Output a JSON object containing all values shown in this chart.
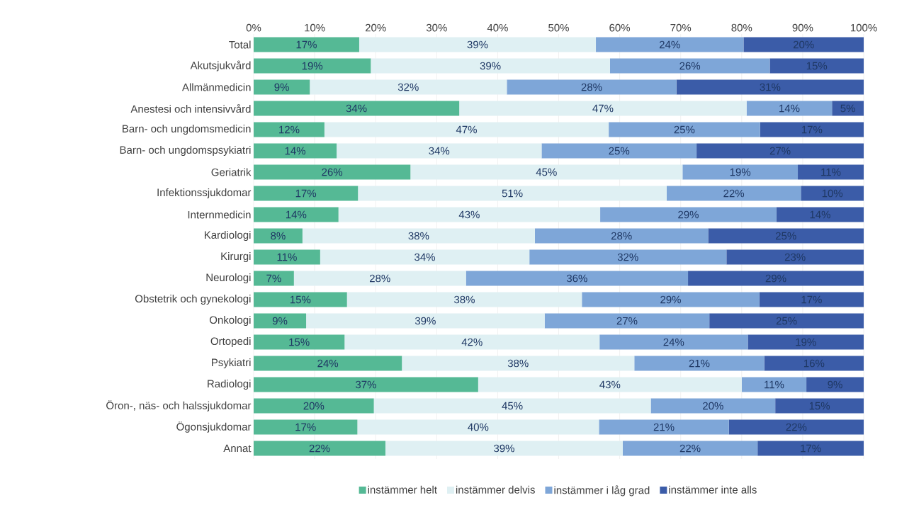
{
  "chart_data": {
    "type": "bar",
    "orientation": "horizontal",
    "stacked": true,
    "grid": "x",
    "legend": "bottom",
    "categories": [
      "Total",
      "Akutsjukvård",
      "Allmänmedicin",
      "Anestesi och intensivvård",
      "Barn- och ungdomsmedicin",
      "Barn- och ungdomspsykiatri",
      "Geriatrik",
      "Infektionssjukdomar",
      "Internmedicin",
      "Kardiologi",
      "Kirurgi",
      "Neurologi",
      "Obstetrik och gynekologi",
      "Onkologi",
      "Ortopedi",
      "Psykiatri",
      "Radiologi",
      "Öron-, näs- och halssjukdomar",
      "Ögonsjukdomar",
      "Annat"
    ],
    "xlim": [
      0,
      100
    ],
    "xticks": [
      {
        "value": 0,
        "label": "0%"
      },
      {
        "value": 10,
        "label": "10%"
      },
      {
        "value": 20,
        "label": "20%"
      },
      {
        "value": 30,
        "label": "30%"
      },
      {
        "value": 40,
        "label": "40%"
      },
      {
        "value": 50,
        "label": "50%"
      },
      {
        "value": 60,
        "label": "60%"
      },
      {
        "value": 70,
        "label": "70%"
      },
      {
        "value": 80,
        "label": "80%"
      },
      {
        "value": 90,
        "label": "90%"
      },
      {
        "value": 100,
        "label": "100%"
      }
    ],
    "series": [
      {
        "name": "instämmer helt",
        "color": "#55b995",
        "values": [
          17.3,
          19.2,
          9.2,
          33.7,
          11.6,
          13.6,
          25.7,
          17.1,
          13.9,
          8.0,
          10.9,
          6.6,
          15.3,
          8.6,
          14.9,
          24.3,
          36.8,
          19.7,
          17.0,
          21.6
        ],
        "value_labels": [
          "17%",
          "19%",
          "9%",
          "34%",
          "12%",
          "14%",
          "26%",
          "17%",
          "14%",
          "8%",
          "11%",
          "7%",
          "15%",
          "9%",
          "15%",
          "24%",
          "37%",
          "20%",
          "17%",
          "22%"
        ]
      },
      {
        "name": "instämmer delvis",
        "color": "#dff0f3",
        "values": [
          38.8,
          39.2,
          32.3,
          47.1,
          46.6,
          33.6,
          44.6,
          50.6,
          42.9,
          38.1,
          34.3,
          28.2,
          38.5,
          39.1,
          41.8,
          38.1,
          43.2,
          45.4,
          39.6,
          38.9
        ],
        "value_labels": [
          "39%",
          "39%",
          "32%",
          "47%",
          "47%",
          "34%",
          "45%",
          "51%",
          "43%",
          "38%",
          "34%",
          "28%",
          "38%",
          "39%",
          "42%",
          "38%",
          "43%",
          "45%",
          "40%",
          "39%"
        ]
      },
      {
        "name": "instämmer i låg grad",
        "color": "#7ea6d8",
        "values": [
          24.2,
          26.2,
          27.8,
          14.0,
          24.8,
          25.4,
          18.9,
          22.0,
          28.9,
          28.4,
          32.3,
          36.4,
          29.1,
          27.0,
          24.3,
          21.3,
          10.6,
          20.4,
          21.3,
          22.1
        ],
        "value_labels": [
          "24%",
          "26%",
          "28%",
          "14%",
          "25%",
          "25%",
          "19%",
          "22%",
          "29%",
          "28%",
          "32%",
          "36%",
          "29%",
          "27%",
          "24%",
          "21%",
          "11%",
          "20%",
          "21%",
          "22%"
        ]
      },
      {
        "name": "instämmer inte alls",
        "color": "#3b5ca8",
        "values": [
          19.7,
          15.4,
          30.7,
          5.2,
          17.0,
          27.4,
          10.8,
          10.3,
          14.3,
          25.5,
          22.5,
          28.8,
          17.1,
          25.3,
          19.0,
          16.3,
          9.4,
          14.5,
          22.1,
          17.4
        ],
        "value_labels": [
          "20%",
          "15%",
          "31%",
          "5%",
          "17%",
          "27%",
          "11%",
          "10%",
          "14%",
          "25%",
          "23%",
          "29%",
          "17%",
          "25%",
          "19%",
          "16%",
          "9%",
          "15%",
          "22%",
          "17%"
        ]
      }
    ]
  }
}
